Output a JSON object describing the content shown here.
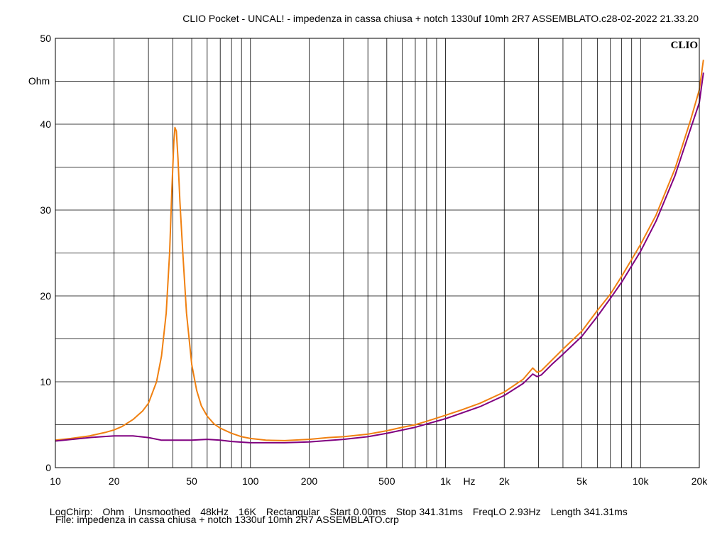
{
  "title": "CLIO Pocket - UNCAL! - impedenza in cassa chiusa + notch 1330uf 10mh 2R7 ASSEMBLATO.c28-02-2022 21.33.20",
  "logo": "CLIO",
  "footer": {
    "items": [
      "LogChirp:",
      "Ohm",
      "Unsmoothed",
      "48kHz",
      "16K",
      "Rectangular",
      "Start 0.00ms",
      "Stop 341.31ms",
      "FreqLO 2.93Hz",
      "Length 341.31ms"
    ],
    "file": "File: impedenza in cassa chiusa + notch 1330uf 10mh 2R7 ASSEMBLATO.crp"
  },
  "colors": {
    "orange": "#f08010",
    "purple": "#800080",
    "grid": "#000000"
  },
  "chart_data": {
    "type": "line",
    "xscale": "log",
    "xlim": [
      10,
      20000
    ],
    "ylim": [
      0,
      50
    ],
    "xlabel": "Hz",
    "ylabel": "Ohm",
    "grid": true,
    "xticks": [
      {
        "v": 10,
        "label": "10"
      },
      {
        "v": 20,
        "label": "20"
      },
      {
        "v": 50,
        "label": "50"
      },
      {
        "v": 100,
        "label": "100"
      },
      {
        "v": 200,
        "label": "200"
      },
      {
        "v": 500,
        "label": "500"
      },
      {
        "v": 1000,
        "label": "1k"
      },
      {
        "v": 2000,
        "label": "2k"
      },
      {
        "v": 5000,
        "label": "5k"
      },
      {
        "v": 10000,
        "label": "10k"
      },
      {
        "v": 20000,
        "label": "20k"
      }
    ],
    "yticks": [
      0,
      10,
      20,
      30,
      40,
      50
    ],
    "series": [
      {
        "color": "#f08010",
        "points": [
          [
            10,
            3.2
          ],
          [
            12,
            3.4
          ],
          [
            15,
            3.7
          ],
          [
            18,
            4.1
          ],
          [
            20,
            4.4
          ],
          [
            22,
            4.8
          ],
          [
            25,
            5.6
          ],
          [
            28,
            6.6
          ],
          [
            30,
            7.5
          ],
          [
            33,
            10
          ],
          [
            35,
            13
          ],
          [
            37,
            18
          ],
          [
            38.5,
            25
          ],
          [
            39.5,
            32
          ],
          [
            40.5,
            38
          ],
          [
            41,
            39.6
          ],
          [
            41.7,
            39.2
          ],
          [
            42.5,
            36
          ],
          [
            43.5,
            31
          ],
          [
            45,
            25
          ],
          [
            47,
            18
          ],
          [
            50,
            12
          ],
          [
            53,
            9
          ],
          [
            56,
            7.2
          ],
          [
            60,
            6
          ],
          [
            65,
            5.1
          ],
          [
            70,
            4.6
          ],
          [
            80,
            4
          ],
          [
            90,
            3.6
          ],
          [
            100,
            3.4
          ],
          [
            120,
            3.2
          ],
          [
            150,
            3.15
          ],
          [
            200,
            3.3
          ],
          [
            250,
            3.5
          ],
          [
            300,
            3.6
          ],
          [
            400,
            3.9
          ],
          [
            500,
            4.3
          ],
          [
            600,
            4.7
          ],
          [
            700,
            5
          ],
          [
            800,
            5.4
          ],
          [
            1000,
            6.1
          ],
          [
            1200,
            6.7
          ],
          [
            1500,
            7.5
          ],
          [
            2000,
            8.8
          ],
          [
            2500,
            10.3
          ],
          [
            2800,
            11.6
          ],
          [
            2950,
            11.1
          ],
          [
            3100,
            11.3
          ],
          [
            3500,
            12.5
          ],
          [
            4000,
            13.8
          ],
          [
            5000,
            15.9
          ],
          [
            6000,
            18.3
          ],
          [
            7000,
            20.2
          ],
          [
            8000,
            22.3
          ],
          [
            10000,
            26
          ],
          [
            12000,
            29.4
          ],
          [
            15000,
            34.8
          ],
          [
            18000,
            40.4
          ],
          [
            20000,
            44
          ],
          [
            21000,
            47.5
          ]
        ]
      },
      {
        "color": "#800080",
        "points": [
          [
            10,
            3.1
          ],
          [
            15,
            3.5
          ],
          [
            20,
            3.7
          ],
          [
            25,
            3.7
          ],
          [
            30,
            3.5
          ],
          [
            35,
            3.2
          ],
          [
            40,
            3.2
          ],
          [
            50,
            3.2
          ],
          [
            60,
            3.3
          ],
          [
            70,
            3.2
          ],
          [
            80,
            3.05
          ],
          [
            100,
            2.9
          ],
          [
            150,
            2.9
          ],
          [
            200,
            3.0
          ],
          [
            300,
            3.3
          ],
          [
            400,
            3.6
          ],
          [
            500,
            4
          ],
          [
            700,
            4.7
          ],
          [
            1000,
            5.7
          ],
          [
            1500,
            7.1
          ],
          [
            2000,
            8.4
          ],
          [
            2500,
            9.8
          ],
          [
            2800,
            10.9
          ],
          [
            2950,
            10.6
          ],
          [
            3100,
            10.8
          ],
          [
            3500,
            12
          ],
          [
            4000,
            13.2
          ],
          [
            5000,
            15.3
          ],
          [
            6000,
            17.6
          ],
          [
            7000,
            19.7
          ],
          [
            8000,
            21.6
          ],
          [
            10000,
            25.2
          ],
          [
            12000,
            28.7
          ],
          [
            15000,
            34
          ],
          [
            18000,
            39.4
          ],
          [
            20000,
            42.5
          ],
          [
            21000,
            46
          ]
        ]
      }
    ]
  }
}
